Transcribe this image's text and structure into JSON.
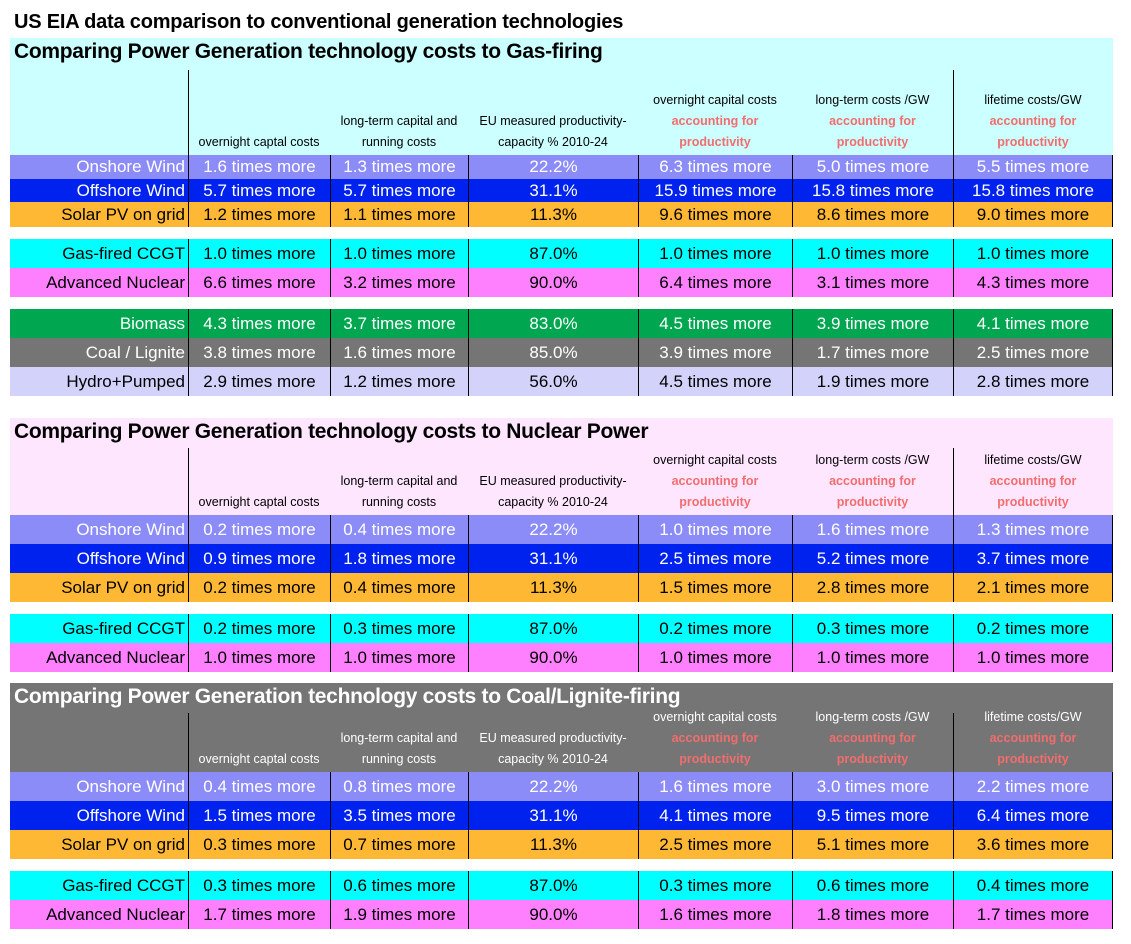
{
  "title": "US  EIA data comparison to conventional generation  technologies",
  "column_headers": [
    {
      "lines": [
        "overnight captal costs"
      ],
      "accent": []
    },
    {
      "lines": [
        "long-term capital and",
        "running costs"
      ],
      "accent": []
    },
    {
      "lines": [
        "EU measured productivity-",
        "capacity % 2010-24"
      ],
      "accent": []
    },
    {
      "lines": [
        "overnight capital costs"
      ],
      "accent": [
        "accounting for",
        "productivity"
      ]
    },
    {
      "lines": [
        "long-term costs /GW"
      ],
      "accent": [
        "accounting for",
        "productivity"
      ]
    },
    {
      "lines": [
        "lifetime costs/GW"
      ],
      "accent": [
        "accounting for",
        "productivity"
      ]
    }
  ],
  "colors": {
    "accent_text": "#f26d6d",
    "onshore": {
      "bg": "#8c8cf8",
      "fg": "#ffffff"
    },
    "offshore": {
      "bg": "#0022ee",
      "fg": "#ffffff"
    },
    "solar": {
      "bg": "#ffb833",
      "fg": "#000000"
    },
    "gas": {
      "bg": "#00ffff",
      "fg": "#000000"
    },
    "nuclear": {
      "bg": "#ff80ff",
      "fg": "#000000"
    },
    "biomass": {
      "bg": "#00a650",
      "fg": "#ffffff"
    },
    "coal": {
      "bg": "#757575",
      "fg": "#ffffff"
    },
    "hydro": {
      "bg": "#d2d2fa",
      "fg": "#000000"
    }
  },
  "sections": [
    {
      "title": "Comparing Power Generation technology costs to Gas-firing",
      "header_bg": "#ccffff",
      "header_fg": "#000000",
      "groups": [
        [
          {
            "key": "onshore",
            "label": "Onshore Wind",
            "values": [
              "1.6 times more",
              "1.3 times more",
              "22.2%",
              "6.3 times more",
              "5.0 times more",
              "5.5 times more"
            ]
          },
          {
            "key": "offshore",
            "label": "Offshore Wind",
            "values": [
              "5.7 times more",
              "5.7 times more",
              "31.1%",
              "15.9 times more",
              "15.8 times more",
              "15.8 times more"
            ]
          },
          {
            "key": "solar",
            "label": "Solar PV on grid",
            "values": [
              "1.2 times more",
              "1.1 times more",
              "11.3%",
              "9.6 times more",
              "8.6 times more",
              "9.0 times more"
            ]
          }
        ],
        [
          {
            "key": "gas",
            "label": "Gas-fired CCGT",
            "values": [
              "1.0 times more",
              "1.0 times more",
              "87.0%",
              "1.0 times more",
              "1.0 times more",
              "1.0 times more"
            ]
          },
          {
            "key": "nuclear",
            "label": "Advanced Nuclear",
            "values": [
              "6.6 times more",
              "3.2 times more",
              "90.0%",
              "6.4 times more",
              "3.1 times more",
              "4.3 times more"
            ]
          }
        ],
        [
          {
            "key": "biomass",
            "label": "Biomass",
            "values": [
              "4.3 times more",
              "3.7 times more",
              "83.0%",
              "4.5 times more",
              "3.9 times more",
              "4.1 times more"
            ]
          },
          {
            "key": "coal",
            "label": "Coal / Lignite",
            "values": [
              "3.8 times more",
              "1.6 times more",
              "85.0%",
              "3.9 times more",
              "1.7 times more",
              "2.5 times more"
            ]
          },
          {
            "key": "hydro",
            "label": "Hydro+Pumped",
            "values": [
              "2.9 times more",
              "1.2 times more",
              "56.0%",
              "4.5 times more",
              "1.9 times more",
              "2.8 times more"
            ]
          }
        ]
      ]
    },
    {
      "title": "Comparing Power Generation technology costs to Nuclear Power",
      "header_bg": "#ffe6ff",
      "header_fg": "#000000",
      "groups": [
        [
          {
            "key": "onshore",
            "label": "Onshore Wind",
            "values": [
              "0.2 times more",
              "0.4 times more",
              "22.2%",
              "1.0 times more",
              "1.6 times more",
              "1.3 times more"
            ]
          },
          {
            "key": "offshore",
            "label": "Offshore Wind",
            "values": [
              "0.9 times more",
              "1.8 times more",
              "31.1%",
              "2.5 times more",
              "5.2 times more",
              "3.7 times more"
            ]
          },
          {
            "key": "solar",
            "label": "Solar PV on grid",
            "values": [
              "0.2 times more",
              "0.4 times more",
              "11.3%",
              "1.5 times more",
              "2.8 times more",
              "2.1 times more"
            ]
          }
        ],
        [
          {
            "key": "gas",
            "label": "Gas-fired CCGT",
            "values": [
              "0.2 times more",
              "0.3 times more",
              "87.0%",
              "0.2 times more",
              "0.3 times more",
              "0.2 times more"
            ]
          },
          {
            "key": "nuclear",
            "label": "Advanced Nuclear",
            "values": [
              "1.0 times more",
              "1.0 times more",
              "90.0%",
              "1.0 times more",
              "1.0 times more",
              "1.0 times more"
            ]
          }
        ]
      ]
    },
    {
      "title": "Comparing Power Generation technology costs to Coal/Lignite-firing",
      "header_bg": "#757575",
      "header_fg": "#ffffff",
      "groups": [
        [
          {
            "key": "onshore",
            "label": "Onshore Wind",
            "values": [
              "0.4 times more",
              "0.8 times more",
              "22.2%",
              "1.6 times more",
              "3.0 times more",
              "2.2 times more"
            ]
          },
          {
            "key": "offshore",
            "label": "Offshore Wind",
            "values": [
              "1.5 times more",
              "3.5 times more",
              "31.1%",
              "4.1 times more",
              "9.5 times more",
              "6.4 times more"
            ]
          },
          {
            "key": "solar",
            "label": "Solar PV on grid",
            "values": [
              "0.3 times more",
              "0.7 times more",
              "11.3%",
              "2.5 times more",
              "5.1 times more",
              "3.6 times more"
            ]
          }
        ],
        [
          {
            "key": "gas",
            "label": "Gas-fired CCGT",
            "values": [
              "0.3 times more",
              "0.6 times more",
              "87.0%",
              "0.3 times more",
              "0.6 times more",
              "0.4 times more"
            ]
          },
          {
            "key": "nuclear",
            "label": "Advanced Nuclear",
            "values": [
              "1.7 times more",
              "1.9 times more",
              "90.0%",
              "1.6 times more",
              "1.8 times more",
              "1.7 times more"
            ]
          }
        ]
      ]
    }
  ]
}
